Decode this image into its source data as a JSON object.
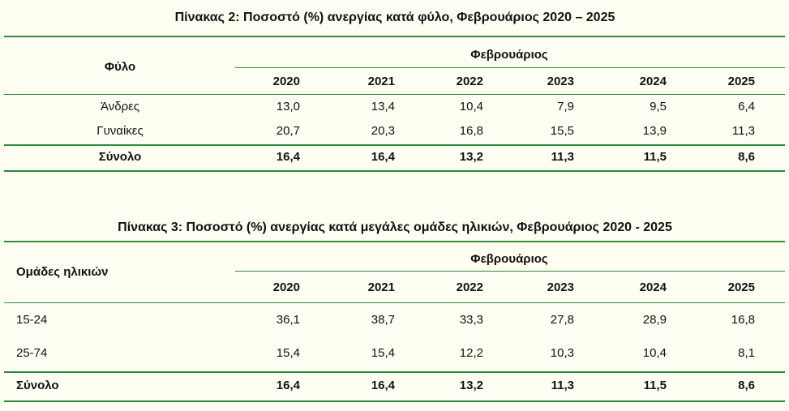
{
  "tables": [
    {
      "title": "Πίνακας 2: Ποσοστό (%) ανεργίας κατά φύλο, Φεβρουάριος 2020 – 2025",
      "row_header": "Φύλο",
      "column_group": "Φεβρουάριος",
      "years": [
        "2020",
        "2021",
        "2022",
        "2023",
        "2024",
        "2025"
      ],
      "rows": [
        {
          "label": "Άνδρες",
          "values": [
            "13,0",
            "13,4",
            "10,4",
            "7,9",
            "9,5",
            "6,4"
          ]
        },
        {
          "label": "Γυναίκες",
          "values": [
            "20,7",
            "20,3",
            "16,8",
            "15,5",
            "13,9",
            "11,3"
          ]
        }
      ],
      "total": {
        "label": "Σύνολο",
        "values": [
          "16,4",
          "16,4",
          "13,2",
          "11,3",
          "11,5",
          "8,6"
        ]
      }
    },
    {
      "title": "Πίνακας 3: Ποσοστό (%) ανεργίας κατά μεγάλες ομάδες ηλικιών, Φεβρουάριος 2020 - 2025",
      "row_header": "Ομάδες ηλικιών",
      "column_group": "Φεβρουάριος",
      "years": [
        "2020",
        "2021",
        "2022",
        "2023",
        "2024",
        "2025"
      ],
      "rows": [
        {
          "label": "15-24",
          "values": [
            "36,1",
            "38,7",
            "33,3",
            "27,8",
            "28,9",
            "16,8"
          ]
        },
        {
          "label": "25-74",
          "values": [
            "15,4",
            "15,4",
            "12,2",
            "10,3",
            "10,4",
            "8,1"
          ]
        }
      ],
      "total": {
        "label": "Σύνολο",
        "values": [
          "16,4",
          "16,4",
          "13,2",
          "11,3",
          "11,5",
          "8,6"
        ]
      }
    }
  ]
}
